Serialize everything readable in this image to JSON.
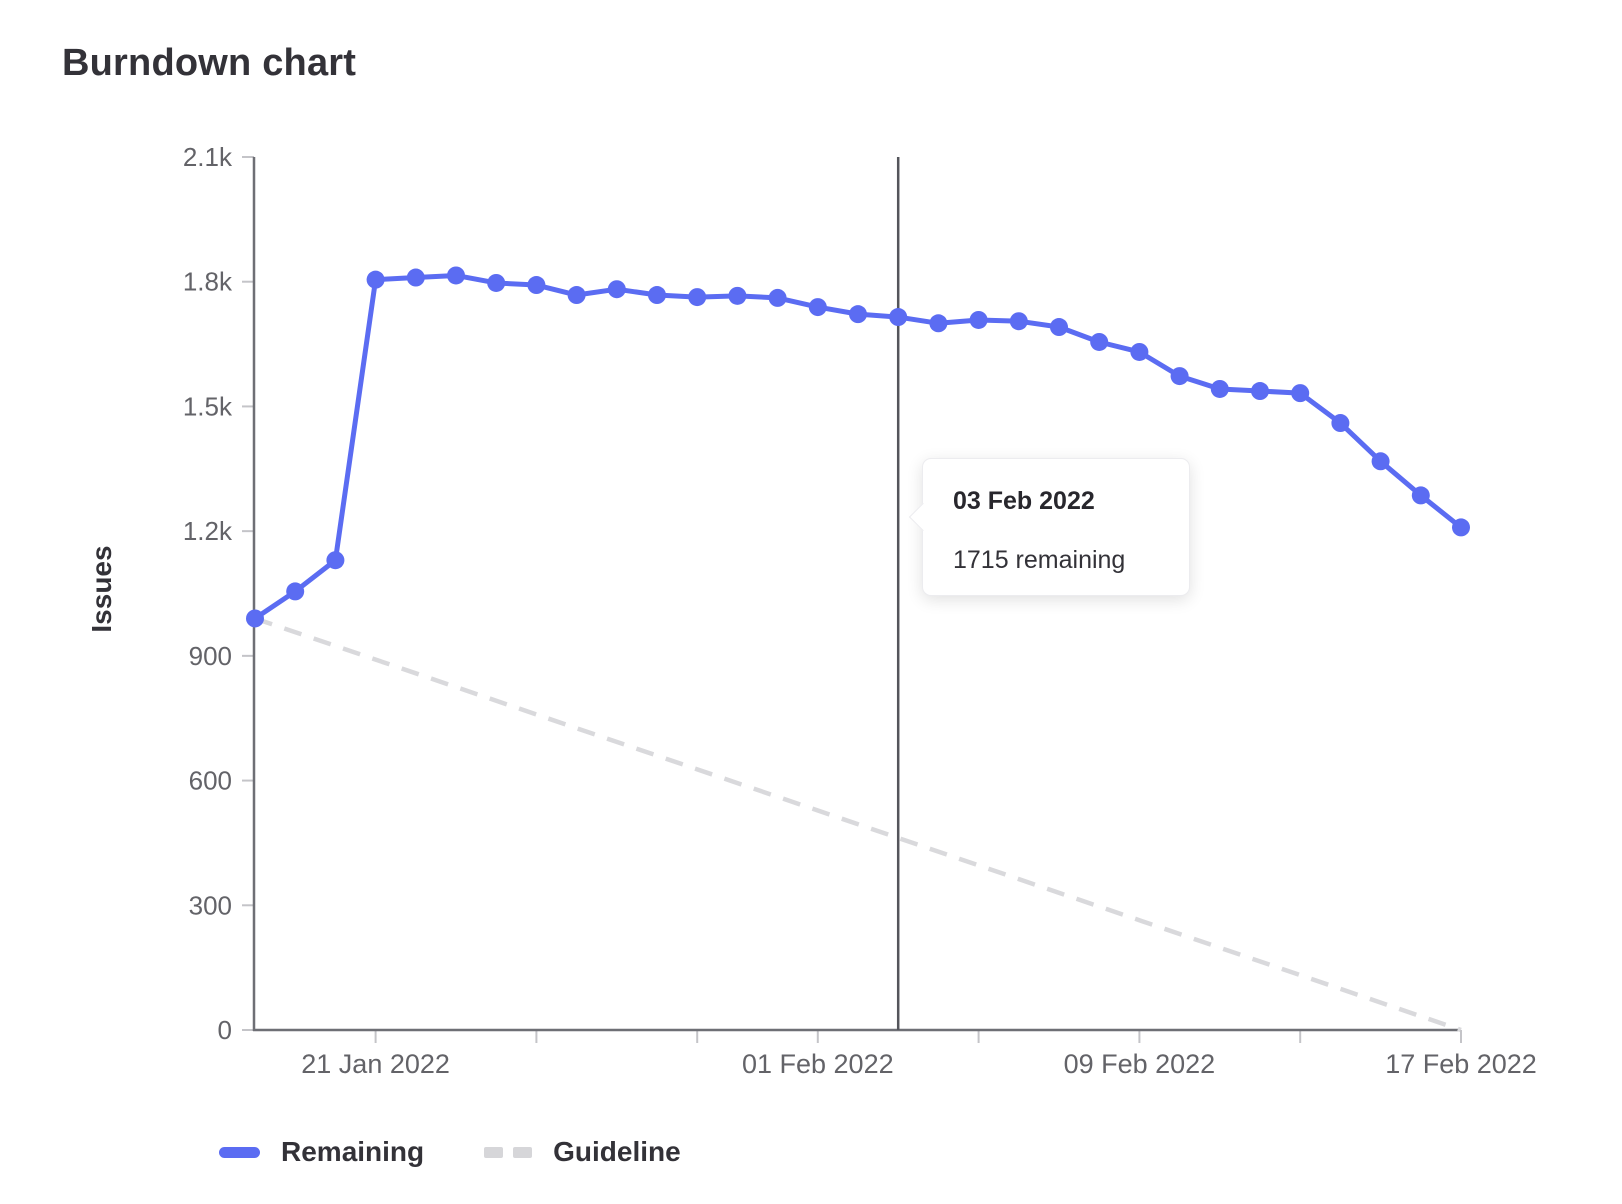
{
  "page_title": "Burndown chart",
  "tooltip": {
    "title": "03 Feb 2022",
    "text": "1715 remaining"
  },
  "legend": {
    "items": [
      {
        "label": "Remaining",
        "style": "solid",
        "color": "#5b6cf2"
      },
      {
        "label": "Guideline",
        "style": "dashed",
        "color": "#d6d6d9"
      }
    ]
  },
  "colors": {
    "remaining": "#5b6cf2",
    "guideline": "#d9d9dc",
    "hover_line": "#54555b",
    "axis": "#6e6f75",
    "tick": "#c4c4c8",
    "tick_label": "#636368",
    "text_dark": "#333238"
  },
  "chart_data": {
    "type": "line",
    "title": "Burndown chart",
    "xlabel": "",
    "ylabel": "Issues",
    "ylim": [
      0,
      2100
    ],
    "grid": false,
    "legend_position": "bottom-left",
    "x": [
      "18 Jan 2022",
      "19 Jan 2022",
      "20 Jan 2022",
      "21 Jan 2022",
      "22 Jan 2022",
      "23 Jan 2022",
      "24 Jan 2022",
      "25 Jan 2022",
      "26 Jan 2022",
      "27 Jan 2022",
      "28 Jan 2022",
      "29 Jan 2022",
      "30 Jan 2022",
      "31 Jan 2022",
      "01 Feb 2022",
      "02 Feb 2022",
      "03 Feb 2022",
      "04 Feb 2022",
      "05 Feb 2022",
      "06 Feb 2022",
      "07 Feb 2022",
      "08 Feb 2022",
      "09 Feb 2022",
      "10 Feb 2022",
      "11 Feb 2022",
      "12 Feb 2022",
      "13 Feb 2022",
      "14 Feb 2022",
      "15 Feb 2022",
      "16 Feb 2022",
      "17 Feb 2022"
    ],
    "series": [
      {
        "name": "Remaining",
        "style": "solid-line-with-points",
        "color": "#5b6cf2",
        "values": [
          990,
          1055,
          1130,
          1805,
          1810,
          1815,
          1797,
          1792,
          1768,
          1782,
          1768,
          1763,
          1766,
          1761,
          1739,
          1722,
          1715,
          1700,
          1708,
          1705,
          1691,
          1655,
          1631,
          1573,
          1542,
          1537,
          1532,
          1460,
          1368,
          1286,
          1209
        ]
      },
      {
        "name": "Guideline",
        "style": "dashed-line",
        "color": "#d9d9dc",
        "endpoints": {
          "start": {
            "x": "18 Jan 2022",
            "y": 990
          },
          "end": {
            "x": "17 Feb 2022",
            "y": 0
          }
        }
      }
    ],
    "y_ticks": [
      {
        "value": 0,
        "label": "0"
      },
      {
        "value": 300,
        "label": "300"
      },
      {
        "value": 600,
        "label": "600"
      },
      {
        "value": 900,
        "label": "900"
      },
      {
        "value": 1200,
        "label": "1.2k"
      },
      {
        "value": 1500,
        "label": "1.5k"
      },
      {
        "value": 1800,
        "label": "1.8k"
      },
      {
        "value": 2100,
        "label": "2.1k"
      }
    ],
    "x_ticks": [
      {
        "day_index": 3,
        "label": "21 Jan 2022"
      },
      {
        "day_index": 7,
        "label": ""
      },
      {
        "day_index": 11,
        "label": ""
      },
      {
        "day_index": 14,
        "label": "01 Feb 2022"
      },
      {
        "day_index": 18,
        "label": ""
      },
      {
        "day_index": 22,
        "label": "09 Feb 2022"
      },
      {
        "day_index": 26,
        "label": ""
      },
      {
        "day_index": 30,
        "label": "17 Feb 2022"
      }
    ],
    "hover_point": {
      "date": "03 Feb 2022",
      "day_index": 16,
      "value": 1715
    }
  }
}
